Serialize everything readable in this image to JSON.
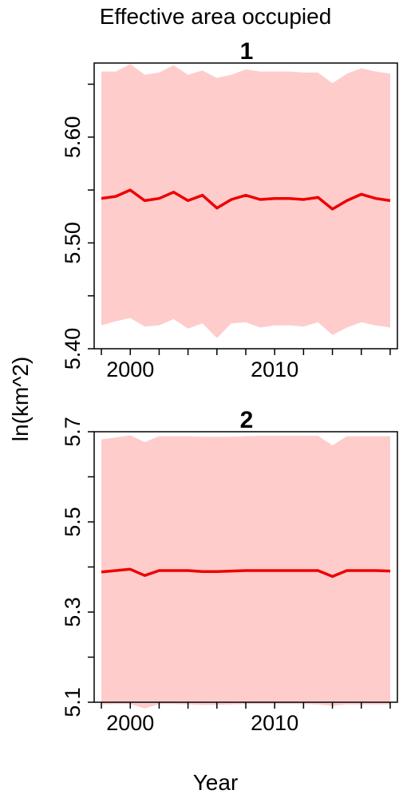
{
  "figure": {
    "title": "Effective area occupied",
    "xlabel": "Year",
    "ylabel": "ln(km^2)"
  },
  "colors": {
    "band": "#ffcccc",
    "line": "#ee0000",
    "axis": "#000000"
  },
  "chart_data": [
    {
      "type": "line",
      "title": "1",
      "xlim": [
        1997.5,
        2018.5
      ],
      "ylim": [
        5.4,
        5.67
      ],
      "x_ticks": [
        1998,
        2000,
        2002,
        2004,
        2006,
        2008,
        2010,
        2012,
        2014,
        2016,
        2018
      ],
      "x_tick_labels": [
        {
          "x": 2000,
          "label": "2000"
        },
        {
          "x": 2010,
          "label": "2010"
        }
      ],
      "y_ticks": [
        5.4,
        5.45,
        5.5,
        5.55,
        5.6,
        5.65
      ],
      "y_tick_labels": [
        {
          "y": 5.4,
          "label": "5.40"
        },
        {
          "y": 5.5,
          "label": "5.50"
        },
        {
          "y": 5.6,
          "label": "5.60"
        }
      ],
      "x": [
        1998,
        1999,
        2000,
        2001,
        2002,
        2003,
        2004,
        2005,
        2006,
        2007,
        2008,
        2009,
        2010,
        2011,
        2012,
        2013,
        2014,
        2015,
        2016,
        2017,
        2018
      ],
      "values": [
        5.542,
        5.544,
        5.55,
        5.54,
        5.542,
        5.548,
        5.54,
        5.545,
        5.533,
        5.541,
        5.545,
        5.541,
        5.542,
        5.542,
        5.541,
        5.543,
        5.532,
        5.54,
        5.546,
        5.542,
        5.54
      ],
      "lower": [
        5.422,
        5.426,
        5.429,
        5.421,
        5.422,
        5.428,
        5.419,
        5.424,
        5.41,
        5.424,
        5.425,
        5.42,
        5.422,
        5.422,
        5.421,
        5.425,
        5.413,
        5.42,
        5.425,
        5.422,
        5.42
      ],
      "upper": [
        5.662,
        5.662,
        5.669,
        5.659,
        5.661,
        5.668,
        5.659,
        5.663,
        5.656,
        5.659,
        5.664,
        5.662,
        5.662,
        5.662,
        5.661,
        5.661,
        5.651,
        5.66,
        5.665,
        5.662,
        5.66
      ]
    },
    {
      "type": "line",
      "title": "2",
      "xlim": [
        1997.5,
        2018.5
      ],
      "ylim": [
        5.1,
        5.7
      ],
      "x_ticks": [
        1998,
        2000,
        2002,
        2004,
        2006,
        2008,
        2010,
        2012,
        2014,
        2016,
        2018
      ],
      "x_tick_labels": [
        {
          "x": 2000,
          "label": "2000"
        },
        {
          "x": 2010,
          "label": "2010"
        }
      ],
      "y_ticks": [
        5.1,
        5.2,
        5.3,
        5.4,
        5.5,
        5.6,
        5.7
      ],
      "y_tick_labels": [
        {
          "y": 5.1,
          "label": "5.1"
        },
        {
          "y": 5.3,
          "label": "5.3"
        },
        {
          "y": 5.5,
          "label": "5.5"
        },
        {
          "y": 5.7,
          "label": "5.7"
        }
      ],
      "x": [
        1998,
        1999,
        2000,
        2001,
        2002,
        2003,
        2004,
        2005,
        2006,
        2007,
        2008,
        2009,
        2010,
        2011,
        2012,
        2013,
        2014,
        2015,
        2016,
        2017,
        2018
      ],
      "values": [
        5.389,
        5.392,
        5.395,
        5.381,
        5.392,
        5.392,
        5.392,
        5.39,
        5.39,
        5.391,
        5.392,
        5.392,
        5.392,
        5.392,
        5.392,
        5.392,
        5.379,
        5.392,
        5.392,
        5.392,
        5.391
      ],
      "lower": [
        5.095,
        5.096,
        5.096,
        5.086,
        5.096,
        5.096,
        5.095,
        5.094,
        5.094,
        5.095,
        5.096,
        5.096,
        5.096,
        5.096,
        5.096,
        5.095,
        5.092,
        5.095,
        5.095,
        5.095,
        5.095
      ],
      "upper": [
        5.683,
        5.687,
        5.692,
        5.677,
        5.69,
        5.69,
        5.69,
        5.689,
        5.689,
        5.689,
        5.69,
        5.691,
        5.691,
        5.691,
        5.691,
        5.691,
        5.67,
        5.69,
        5.69,
        5.69,
        5.69
      ]
    }
  ]
}
